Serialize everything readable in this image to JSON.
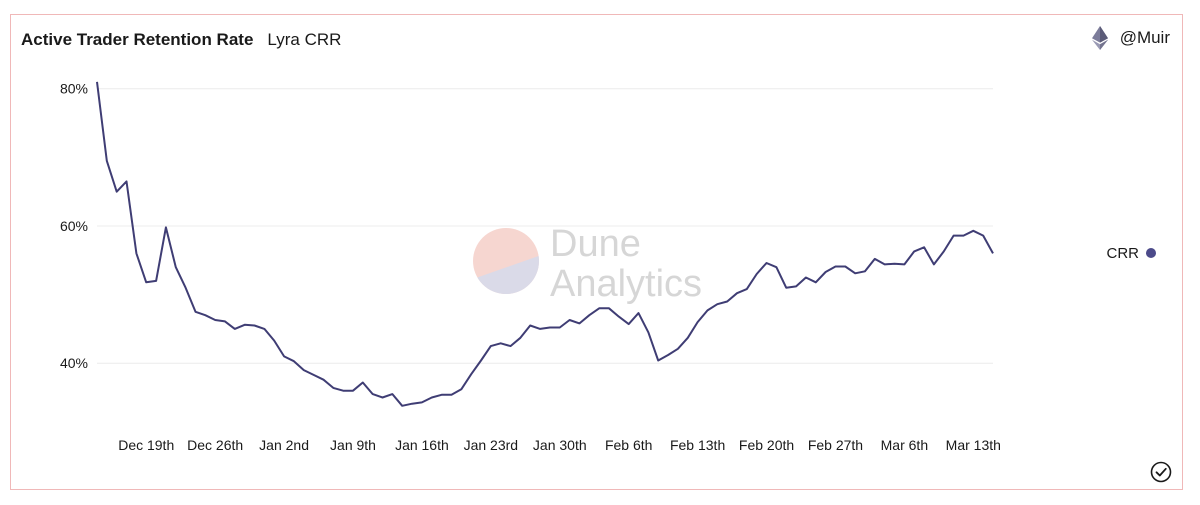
{
  "header": {
    "title": "Active Trader Retention Rate",
    "subtitle": "Lyra CRR"
  },
  "author": {
    "name": "@Muir",
    "icon": "ethereum-icon"
  },
  "watermark": {
    "line1": "Dune",
    "line2": "Analytics"
  },
  "colors": {
    "line": "#3f3d74",
    "legend_dot": "#4c4a8a",
    "grid": "#ececec",
    "frame": "#f0b8b8"
  },
  "chart_data": {
    "type": "line",
    "title": "Active Trader Retention Rate",
    "subtitle": "Lyra CRR",
    "xlabel": "",
    "ylabel": "",
    "ylim": [
      31,
      82
    ],
    "yticks": [
      40,
      60,
      80
    ],
    "ytick_labels": [
      "40%",
      "60%",
      "80%"
    ],
    "x_start": "Dec 14th",
    "x_step_days": 1,
    "xtick_labels": [
      "Dec 19th",
      "Dec 26th",
      "Jan 2nd",
      "Jan 9th",
      "Jan 16th",
      "Jan 23rd",
      "Jan 30th",
      "Feb 6th",
      "Feb 13th",
      "Feb 20th",
      "Feb 27th",
      "Mar 6th",
      "Mar 13th"
    ],
    "xtick_index": [
      5,
      12,
      19,
      26,
      33,
      40,
      47,
      54,
      61,
      68,
      75,
      82,
      89
    ],
    "legend": {
      "position": "right"
    },
    "series": [
      {
        "name": "CRR",
        "values": [
          81,
          69.5,
          65,
          66.5,
          56,
          51.8,
          52,
          59.8,
          54,
          51,
          47.5,
          47,
          46.3,
          46.1,
          45,
          45.6,
          45.5,
          45,
          43.3,
          41,
          40.3,
          39,
          38.3,
          37.6,
          36.4,
          36,
          36,
          37.2,
          35.5,
          35,
          35.5,
          33.8,
          34.1,
          34.3,
          35,
          35.4,
          35.4,
          36.2,
          38.4,
          40.4,
          42.5,
          42.9,
          42.5,
          43.7,
          45.5,
          45,
          45.2,
          45.2,
          46.3,
          45.8,
          47,
          48,
          48,
          46.8,
          45.7,
          47.3,
          44.5,
          40.4,
          41.2,
          42.1,
          43.7,
          46,
          47.7,
          48.6,
          49,
          50.2,
          50.8,
          53,
          54.6,
          54,
          51,
          51.2,
          52.5,
          51.8,
          53.3,
          54.1,
          54.1,
          53.1,
          53.4,
          55.2,
          54.4,
          54.5,
          54.4,
          56.3,
          56.9,
          54.4,
          56.3,
          58.6,
          58.6,
          59.3,
          58.6,
          56
        ]
      }
    ]
  }
}
